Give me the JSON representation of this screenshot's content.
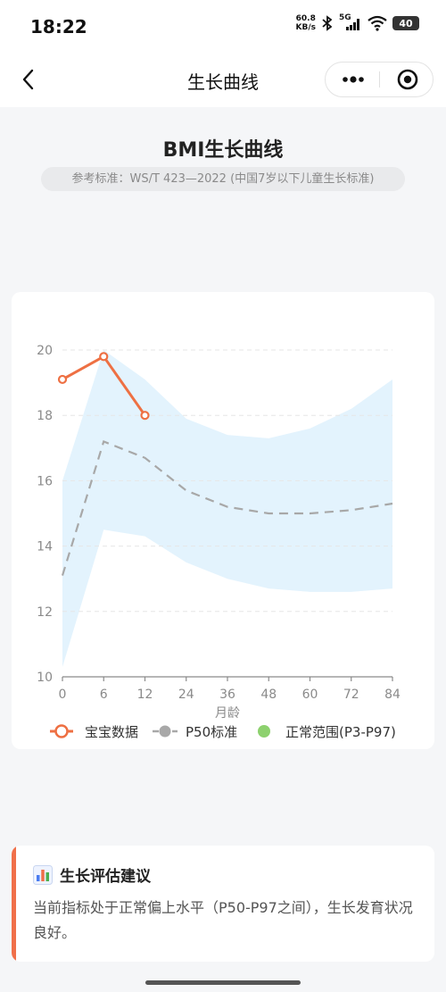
{
  "status": {
    "time": "18:22",
    "net_speed_value": "60.8",
    "net_speed_unit": "KB/s",
    "network": "5G",
    "battery": "40"
  },
  "nav": {
    "title": "生长曲线"
  },
  "header": {
    "title": "BMI生长曲线",
    "standard": "参考标准：WS/T 423—2022 (中国7岁以下儿童生长标准)"
  },
  "legend": {
    "baby": "宝宝数据",
    "p50": "P50标准",
    "range": "正常范围(P3-P97)"
  },
  "chart_data": {
    "type": "line",
    "x": [
      0,
      6,
      12,
      24,
      36,
      48,
      60,
      72,
      84
    ],
    "xlabel": "月龄",
    "ylabel": "",
    "ylim": [
      10,
      20
    ],
    "yticks": [
      10,
      12,
      14,
      16,
      18,
      20
    ],
    "series": [
      {
        "name": "宝宝数据",
        "x": [
          0,
          6,
          12
        ],
        "values": [
          19.1,
          19.8,
          18.0
        ],
        "color": "#ee7043"
      },
      {
        "name": "P50标准",
        "x": [
          0,
          6,
          12,
          24,
          36,
          48,
          60,
          72,
          84
        ],
        "values": [
          13.1,
          17.2,
          16.7,
          15.7,
          15.2,
          15.0,
          15.0,
          15.1,
          15.3
        ],
        "color": "#a8a8a8"
      }
    ],
    "band": {
      "name": "正常范围(P3-P97)",
      "x": [
        0,
        6,
        12,
        24,
        36,
        48,
        60,
        72,
        84
      ],
      "upper": [
        16.0,
        20.0,
        19.1,
        17.9,
        17.4,
        17.3,
        17.6,
        18.2,
        19.1
      ],
      "lower": [
        10.3,
        14.5,
        14.3,
        13.5,
        13.0,
        12.7,
        12.6,
        12.6,
        12.7
      ],
      "color": "#e3f3fd",
      "legend_color": "#8dd16e"
    },
    "grid": "horizontal-dashed",
    "legend_position": "bottom"
  },
  "advice": {
    "title": "生长评估建议",
    "text": "当前指标处于正常偏上水平（P50-P97之间），生长发育状况良好。"
  }
}
